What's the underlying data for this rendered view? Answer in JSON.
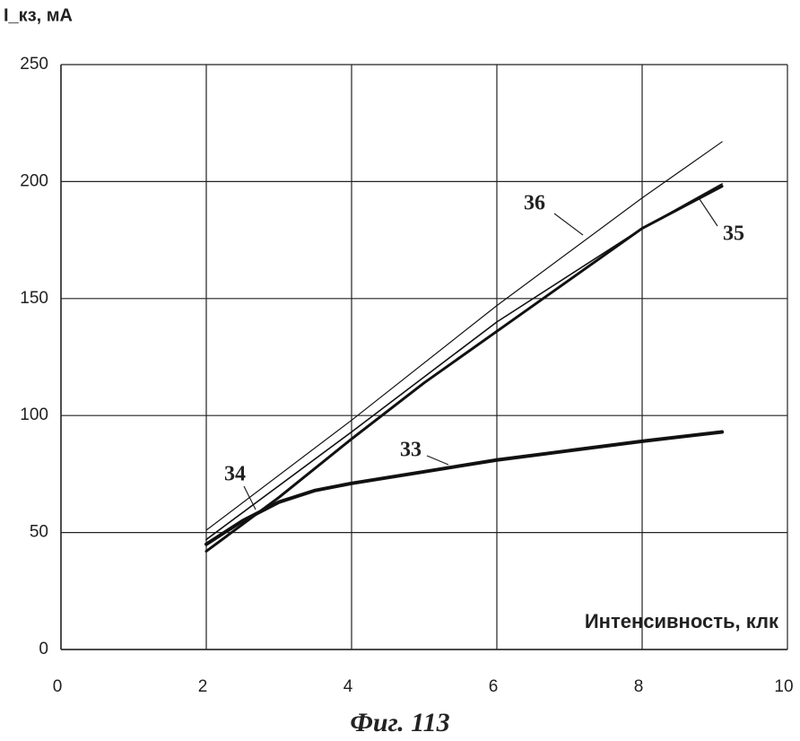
{
  "chart_data": {
    "type": "line",
    "y_label": "I_кз, мА",
    "x_label": "Интенсивность, клк",
    "caption": "Фиг. 113",
    "xlim": [
      0,
      10
    ],
    "xticks": [
      0,
      2,
      4,
      6,
      8,
      10
    ],
    "ylim": [
      0,
      250
    ],
    "yticks": [
      0,
      50,
      100,
      150,
      200,
      250
    ],
    "grid": true,
    "series": [
      {
        "name": "36",
        "color": "#111111",
        "line_width": 1.2,
        "x": [
          2,
          4,
          6,
          8,
          9.1
        ],
        "values": [
          51,
          98,
          147,
          193,
          217
        ]
      },
      {
        "name": "35",
        "color": "#111111",
        "line_width": 1.6,
        "x": [
          2,
          4,
          6,
          8,
          9.1
        ],
        "values": [
          47,
          93,
          140,
          180,
          199
        ]
      },
      {
        "name": "34",
        "color": "#111111",
        "line_width": 3,
        "x": [
          2,
          3,
          4,
          5,
          6,
          7,
          8,
          9.1
        ],
        "values": [
          42,
          65,
          90,
          114,
          136,
          158,
          180,
          198
        ]
      },
      {
        "name": "33",
        "color": "#111111",
        "line_width": 4,
        "x": [
          2,
          2.5,
          3,
          3.5,
          4,
          5,
          6,
          7,
          8,
          9.1
        ],
        "values": [
          45,
          55,
          63,
          68,
          71,
          76,
          81,
          85,
          89,
          93
        ]
      }
    ]
  }
}
